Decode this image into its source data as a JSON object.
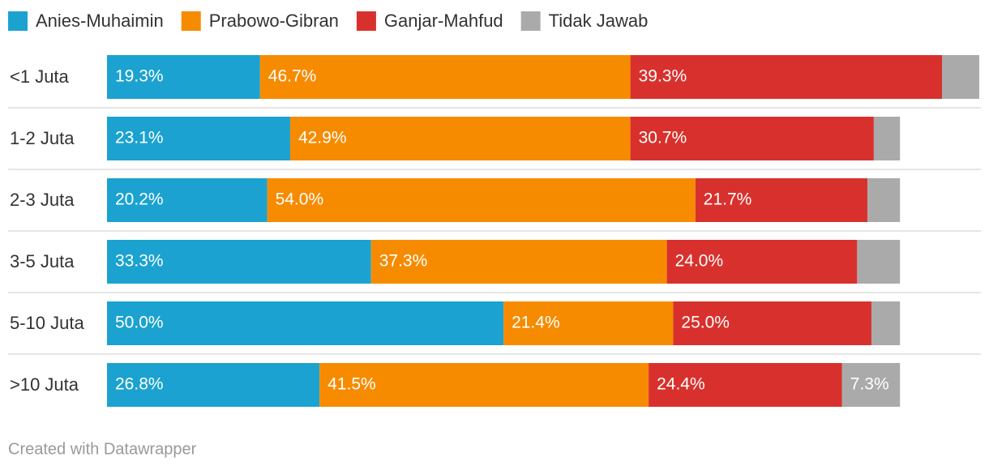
{
  "chart_data": {
    "type": "stacked-bar",
    "categories": [
      "<1 Juta",
      "1-2 Juta",
      "2-3 Juta",
      "3-5 Juta",
      "5-10 Juta",
      ">10 Juta"
    ],
    "series": [
      {
        "name": "Anies-Muhaimin",
        "color": "#1ba2d0",
        "values": [
          19.3,
          23.1,
          20.2,
          33.3,
          50.0,
          26.8
        ],
        "value_labels": [
          "19.3%",
          "23.1%",
          "20.2%",
          "33.3%",
          "50.0%",
          "26.8%"
        ]
      },
      {
        "name": "Prabowo-Gibran",
        "color": "#f68b00",
        "values": [
          46.7,
          42.9,
          54.0,
          37.3,
          21.4,
          41.5
        ],
        "value_labels": [
          "46.7%",
          "42.9%",
          "54.0%",
          "37.3%",
          "21.4%",
          "41.5%"
        ]
      },
      {
        "name": "Ganjar-Mahfud",
        "color": "#d8312d",
        "values": [
          39.3,
          30.7,
          21.7,
          24.0,
          25.0,
          24.4
        ],
        "value_labels": [
          "39.3%",
          "30.7%",
          "21.7%",
          "24.0%",
          "25.0%",
          "24.4%"
        ]
      },
      {
        "name": "Tidak Jawab",
        "color": "#aaaaaa",
        "values": [
          4.7,
          3.3,
          4.1,
          5.4,
          3.6,
          7.3
        ],
        "value_labels": [
          null,
          null,
          null,
          null,
          null,
          "7.3%"
        ]
      }
    ],
    "xlim": [
      0,
      110
    ],
    "credit": "Created with Datawrapper"
  }
}
